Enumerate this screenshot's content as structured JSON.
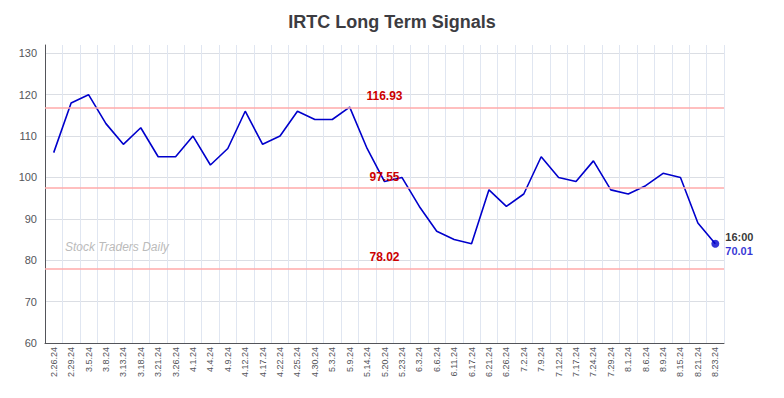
{
  "chart_data": {
    "type": "line",
    "title": "IRTC Long Term Signals",
    "categories": [
      "2.26.24",
      "2.29.24",
      "3.5.24",
      "3.8.24",
      "3.13.24",
      "3.18.24",
      "3.21.24",
      "3.26.24",
      "4.1.24",
      "4.4.24",
      "4.9.24",
      "4.12.24",
      "4.17.24",
      "4.22.24",
      "4.25.24",
      "4.30.24",
      "5.3.24",
      "5.9.24",
      "5.14.24",
      "5.20.24",
      "5.23.24",
      "6.3.24",
      "6.6.24",
      "6.11.24",
      "6.17.24",
      "6.21.24",
      "6.26.24",
      "7.2.24",
      "7.9.24",
      "7.12.24",
      "7.17.24",
      "7.24.24",
      "7.29.24",
      "8.1.24",
      "8.6.24",
      "8.9.24",
      "8.15.24",
      "8.21.24",
      "8.23.24"
    ],
    "values": [
      106,
      118,
      120,
      113,
      108,
      112,
      105,
      105,
      110,
      103,
      107,
      116,
      108,
      110,
      116,
      114,
      114,
      117,
      107,
      99,
      100,
      93,
      87,
      85,
      84,
      97,
      93,
      96,
      105,
      100,
      99,
      104,
      97,
      96,
      98,
      101,
      100,
      89,
      84
    ],
    "color": "#0000cc",
    "ylim": [
      60,
      132
    ],
    "yticks": [
      60,
      70,
      80,
      90,
      100,
      110,
      120,
      130
    ],
    "grid": true,
    "hlines": [
      {
        "value": 116.93,
        "label": "116.93",
        "color": "#ffaaaa",
        "label_color": "#cc0000"
      },
      {
        "value": 97.55,
        "label": "97.55",
        "color": "#ffaaaa",
        "label_color": "#cc0000"
      },
      {
        "value": 78.02,
        "label": "78.02",
        "color": "#ffaaaa",
        "label_color": "#cc0000"
      }
    ],
    "annotations": [
      {
        "text": "16:00",
        "color": "#000000"
      },
      {
        "text": "70.01",
        "color": "#0000cc"
      }
    ],
    "watermark": {
      "text": "Stock Traders Daily",
      "color": "#bbbbbb"
    }
  }
}
